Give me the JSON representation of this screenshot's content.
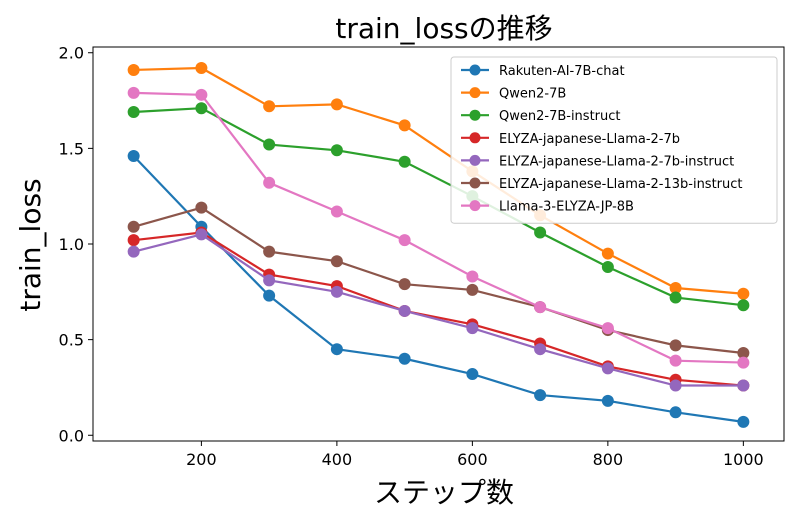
{
  "chart_data": {
    "type": "line",
    "title": "train_lossの推移",
    "xlabel": "ステップ数",
    "ylabel": "train_loss",
    "xlim": [
      40,
      1060
    ],
    "ylim": [
      -0.03,
      2.03
    ],
    "xticks": [
      200,
      400,
      600,
      800,
      1000
    ],
    "yticks": [
      0.0,
      0.5,
      1.0,
      1.5,
      2.0
    ],
    "xtick_labels": [
      "200",
      "400",
      "600",
      "800",
      "1000"
    ],
    "ytick_labels": [
      "0.0",
      "0.5",
      "1.0",
      "1.5",
      "2.0"
    ],
    "grid": false,
    "legend_position": "top-right",
    "x": [
      100,
      200,
      300,
      400,
      500,
      600,
      700,
      800,
      900,
      1000
    ],
    "series": [
      {
        "name": "Rakuten-AI-7B-chat",
        "color": "#1f77b4",
        "values": [
          1.46,
          1.09,
          0.73,
          0.45,
          0.4,
          0.32,
          0.21,
          0.18,
          0.12,
          0.07
        ]
      },
      {
        "name": "Qwen2-7B",
        "color": "#ff7f0e",
        "values": [
          1.91,
          1.92,
          1.72,
          1.73,
          1.62,
          1.38,
          1.15,
          0.95,
          0.77,
          0.74
        ]
      },
      {
        "name": "Qwen2-7B-instruct",
        "color": "#2ca02c",
        "values": [
          1.69,
          1.71,
          1.52,
          1.49,
          1.43,
          1.25,
          1.06,
          0.88,
          0.72,
          0.68
        ]
      },
      {
        "name": "ELYZA-japanese-Llama-2-7b",
        "color": "#d62728",
        "values": [
          1.02,
          1.06,
          0.84,
          0.78,
          0.65,
          0.58,
          0.48,
          0.36,
          0.29,
          0.26
        ]
      },
      {
        "name": "ELYZA-japanese-Llama-2-7b-instruct",
        "color": "#9467bd",
        "values": [
          0.96,
          1.05,
          0.81,
          0.75,
          0.65,
          0.56,
          0.45,
          0.35,
          0.26,
          0.26
        ]
      },
      {
        "name": "ELYZA-japanese-Llama-2-13b-instruct",
        "color": "#8c564b",
        "values": [
          1.09,
          1.19,
          0.96,
          0.91,
          0.79,
          0.76,
          0.67,
          0.55,
          0.47,
          0.43
        ]
      },
      {
        "name": "Llama-3-ELYZA-JP-8B",
        "color": "#e377c2",
        "values": [
          1.79,
          1.78,
          1.32,
          1.17,
          1.02,
          0.83,
          0.67,
          0.56,
          0.39,
          0.38
        ]
      }
    ]
  }
}
